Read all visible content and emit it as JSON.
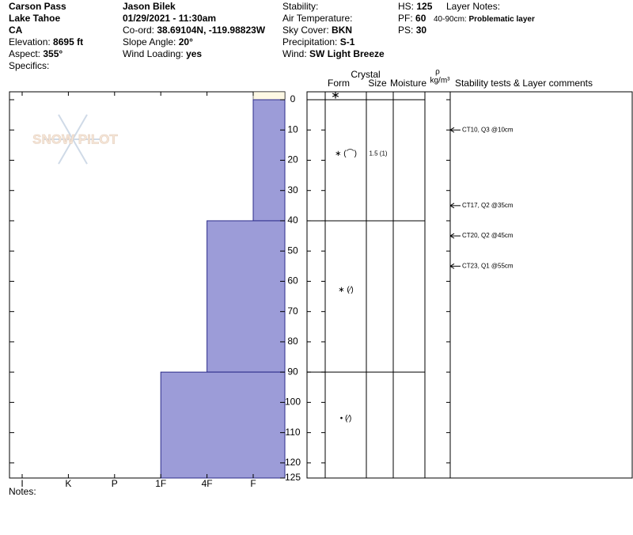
{
  "header": [
    [
      {
        "value": "Carson Pass"
      },
      {
        "value": "Lake Tahoe"
      },
      {
        "value": "CA"
      },
      {
        "label": "Elevation:",
        "value": "8695 ft"
      },
      {
        "label": "Aspect:",
        "value": "355°"
      },
      {
        "label": "Specifics:"
      }
    ],
    [
      {
        "value": "Jason Bilek"
      },
      {
        "value": "01/29/2021 - 11:30am"
      },
      {
        "label": "Co-ord:",
        "value": "38.69104N, -119.98823W"
      },
      {
        "label": "Slope Angle:",
        "value": "20°"
      },
      {
        "label": "Wind Loading:",
        "value": "yes"
      }
    ],
    [
      {
        "label": "Stability:"
      },
      {
        "label": "Air Temperature:"
      },
      {
        "label": "Sky Cover:",
        "value": "BKN"
      },
      {
        "label": "Precipitation:",
        "value": "S-1"
      },
      {
        "label": "Wind:",
        "value": "SW Light Breeze"
      }
    ],
    [
      {
        "label": "HS:",
        "value": 125
      },
      {
        "label": "PF:",
        "value": 60
      },
      {
        "label": "PS:",
        "value": 30
      }
    ]
  ],
  "layer_notes": {
    "label": "Layer Notes:",
    "items": [
      {
        "label": "40-90cm:",
        "value": "Problematic layer"
      }
    ]
  },
  "notes_label": "Notes:",
  "logo": "SNOW PILOT",
  "chart_data": {
    "type": "snow-profile",
    "hardness_categories": [
      "I",
      "K",
      "P",
      "1F",
      "4F",
      "F"
    ],
    "ylim": [
      0,
      125
    ],
    "yticks": [
      0,
      10,
      20,
      30,
      40,
      50,
      60,
      70,
      80,
      90,
      100,
      110,
      120,
      125
    ],
    "color": "#9c9cd8",
    "columns": {
      "crystal": "Crystal",
      "form": "Form",
      "size": "Size",
      "moisture": "Moisture",
      "rho": "ρ",
      "rho_unit": "kg/m³",
      "comments": "Stability tests & Layer comments"
    },
    "surface_form": "∗",
    "layers": [
      {
        "top": 0,
        "bottom": 40,
        "hardness": "F",
        "form": "∗ (⌒)",
        "size": "1.5 (1)"
      },
      {
        "top": 40,
        "bottom": 90,
        "hardness": "4F",
        "form": "∗ (⁄)"
      },
      {
        "top": 90,
        "bottom": 125,
        "hardness": "1F",
        "form": "• (⁄)"
      }
    ],
    "tests": [
      {
        "depth": 10,
        "label": "CT10, Q3 @10cm"
      },
      {
        "depth": 35,
        "label": "CT17, Q2 @35cm"
      },
      {
        "depth": 45,
        "label": "CT20, Q2 @45cm"
      },
      {
        "depth": 55,
        "label": "CT23, Q1 @55cm"
      }
    ]
  }
}
